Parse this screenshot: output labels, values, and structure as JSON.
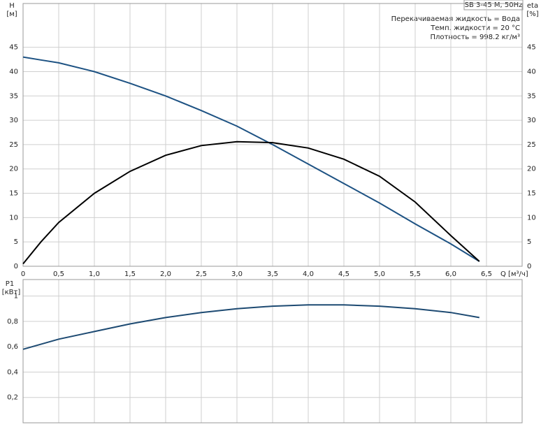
{
  "chart_data": [
    {
      "type": "line",
      "title": "SB 3-45 M, 50Hz",
      "annotations": [
        "Перекачиваемая жидкость = Вода",
        "Темп. жидкости = 20 °C",
        "Плотность = 998.2 кг/м³"
      ],
      "ylabel": "H",
      "ylabel_unit": "[м]",
      "y2label": "eta",
      "y2label_unit": "[%]",
      "xlabel": "Q [м³/ч]",
      "x": [
        0,
        0.25,
        0.5,
        1,
        1.5,
        2,
        2.5,
        3,
        3.5,
        4,
        4.5,
        5,
        5.5,
        6,
        6.4
      ],
      "series": [
        {
          "name": "H",
          "color": "#1d5283",
          "values": [
            43,
            42.4,
            41.8,
            40,
            37.6,
            35,
            32,
            28.8,
            25,
            21,
            17,
            13,
            8.7,
            4.6,
            1
          ]
        },
        {
          "name": "eta",
          "color": "#000000",
          "axis": "y2",
          "values": [
            0.5,
            5,
            9,
            15,
            19.5,
            22.8,
            24.8,
            25.6,
            25.4,
            24.3,
            22,
            18.5,
            13.2,
            6.3,
            1
          ]
        }
      ],
      "xlim": [
        0,
        7
      ],
      "xticks": [
        0,
        {
          "value": 0.5,
          "label": "0,5"
        },
        {
          "value": 1,
          "label": "1,0"
        },
        {
          "value": 1.5,
          "label": "1,5"
        },
        {
          "value": 2,
          "label": "2,0"
        },
        {
          "value": 2.5,
          "label": "2,5"
        },
        {
          "value": 3,
          "label": "3,0"
        },
        {
          "value": 3.5,
          "label": "3,5"
        },
        {
          "value": 4,
          "label": "4,0"
        },
        {
          "value": 4.5,
          "label": "4,5"
        },
        {
          "value": 5,
          "label": "5,0"
        },
        {
          "value": 5.5,
          "label": "5,5"
        },
        {
          "value": 6,
          "label": "6,0"
        },
        {
          "value": 6.5,
          "label": "6,5"
        }
      ],
      "ylim": [
        0,
        54
      ],
      "yticks": [
        0,
        5,
        10,
        15,
        20,
        25,
        30,
        35,
        40,
        45
      ],
      "y2lim": [
        0,
        54
      ],
      "y2ticks": [
        0,
        5,
        10,
        15,
        20,
        25,
        30,
        35,
        40,
        45
      ],
      "grid": true
    },
    {
      "type": "line",
      "ylabel": "P1",
      "ylabel_unit": "[кВт]",
      "x": [
        0,
        0.5,
        1,
        1.5,
        2,
        2.5,
        3,
        3.5,
        4,
        4.5,
        5,
        5.5,
        6,
        6.4
      ],
      "series": [
        {
          "name": "P1",
          "color": "#1d4a72",
          "values": [
            0.58,
            0.66,
            0.72,
            0.78,
            0.83,
            0.87,
            0.9,
            0.92,
            0.93,
            0.93,
            0.92,
            0.9,
            0.87,
            0.83
          ]
        }
      ],
      "ylim": [
        0,
        1.13
      ],
      "yticks": [
        {
          "value": 0.2,
          "label": "0,2"
        },
        {
          "value": 0.4,
          "label": "0,4"
        },
        {
          "value": 0.6,
          "label": "0,6"
        },
        {
          "value": 0.8,
          "label": "0,8"
        },
        {
          "value": 1,
          "label": "1"
        }
      ],
      "grid": true
    }
  ]
}
